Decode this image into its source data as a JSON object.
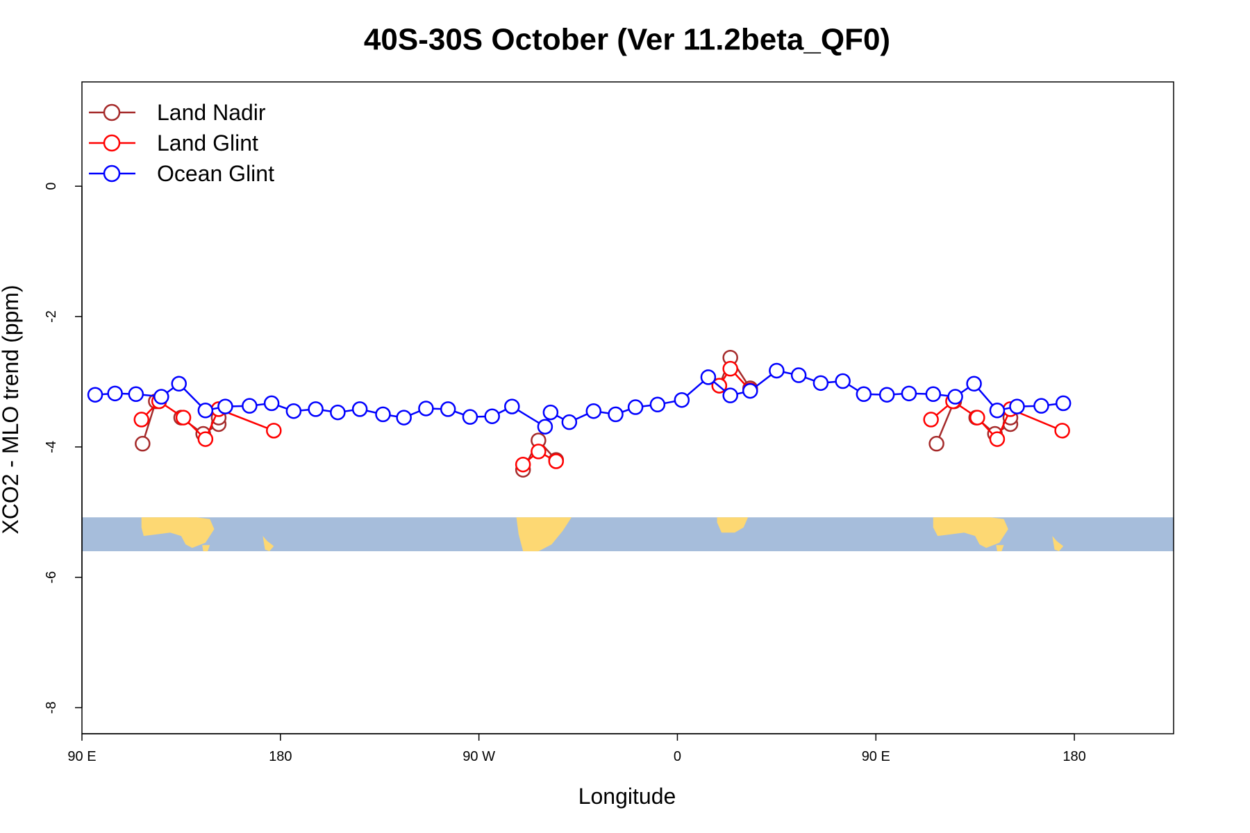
{
  "chart_data": {
    "type": "line",
    "title": "40S-30S October (Ver 11.2beta_QF0)",
    "xlabel": "Longitude",
    "ylabel": "XCO2 - MLO trend (ppm)",
    "xlim": [
      90,
      585
    ],
    "ylim": [
      -8.4,
      1.6
    ],
    "x_ticks": [
      {
        "value": 90,
        "label": "90 E"
      },
      {
        "value": 180,
        "label": "180"
      },
      {
        "value": 270,
        "label": "90 W"
      },
      {
        "value": 360,
        "label": "0"
      },
      {
        "value": 450,
        "label": "90 E"
      },
      {
        "value": 540,
        "label": "180"
      }
    ],
    "y_ticks": [
      {
        "value": 0,
        "label": "0"
      },
      {
        "value": -2,
        "label": "-2"
      },
      {
        "value": -4,
        "label": "-4"
      },
      {
        "value": -6,
        "label": "-6"
      },
      {
        "value": -8,
        "label": "-8"
      }
    ],
    "grid": false,
    "legend_position": "top-left",
    "map_strip": {
      "y_range": [
        -5.6,
        -5.08
      ],
      "ocean_color": "#a6bddb",
      "land_color": "#fdd873"
    },
    "series": [
      {
        "name": "Land Nadir",
        "color": "#a52a2a",
        "segments": [
          [
            [
              117.5,
              -3.95
            ],
            [
              123.5,
              -3.3
            ]
          ],
          [
            [
              135,
              -3.55
            ],
            [
              145,
              -3.8
            ],
            [
              152,
              -3.65
            ],
            [
              152,
              -3.55
            ]
          ],
          [
            [
              290,
              -4.35
            ],
            [
              297,
              -3.9
            ],
            [
              305,
              -4.2
            ]
          ],
          [
            [
              379,
              -3.06
            ],
            [
              384,
              -2.63
            ],
            [
              393,
              -3.1
            ]
          ],
          [
            [
              477.5,
              -3.95
            ],
            [
              485.5,
              -3.3
            ]
          ],
          [
            [
              495.5,
              -3.55
            ],
            [
              504,
              -3.8
            ],
            [
              511,
              -3.65
            ],
            [
              511,
              -3.55
            ]
          ]
        ]
      },
      {
        "name": "Land Glint",
        "color": "#ff0000",
        "segments": [
          [
            [
              117,
              -3.58
            ],
            [
              125,
              -3.3
            ],
            [
              136,
              -3.55
            ],
            [
              146,
              -3.88
            ],
            [
              152,
              -3.42
            ],
            [
              177,
              -3.75
            ]
          ],
          [
            [
              290,
              -4.27
            ],
            [
              297,
              -4.07
            ],
            [
              305,
              -4.22
            ]
          ],
          [
            [
              379,
              -3.06
            ],
            [
              384,
              -2.8
            ],
            [
              393,
              -3.13
            ]
          ],
          [
            [
              475,
              -3.58
            ],
            [
              485,
              -3.3
            ],
            [
              496,
              -3.55
            ],
            [
              505,
              -3.88
            ],
            [
              511,
              -3.42
            ],
            [
              534.5,
              -3.75
            ]
          ]
        ]
      },
      {
        "name": "Ocean Glint",
        "color": "#0000ff",
        "segments": [
          [
            [
              96,
              -3.2
            ],
            [
              105,
              -3.18
            ],
            [
              114.5,
              -3.19
            ],
            [
              126,
              -3.23
            ],
            [
              134,
              -3.03
            ],
            [
              146,
              -3.44
            ],
            [
              155,
              -3.38
            ],
            [
              166,
              -3.37
            ],
            [
              176,
              -3.33
            ],
            [
              186,
              -3.45
            ],
            [
              196,
              -3.42
            ],
            [
              206,
              -3.47
            ],
            [
              216,
              -3.42
            ],
            [
              226.5,
              -3.5
            ],
            [
              236,
              -3.55
            ],
            [
              246,
              -3.41
            ],
            [
              256,
              -3.42
            ],
            [
              266,
              -3.54
            ],
            [
              276,
              -3.53
            ],
            [
              285,
              -3.38
            ],
            [
              300,
              -3.69
            ],
            [
              302.5,
              -3.47
            ],
            [
              311,
              -3.62
            ],
            [
              322,
              -3.45
            ],
            [
              332,
              -3.5
            ],
            [
              341,
              -3.39
            ],
            [
              351,
              -3.35
            ],
            [
              362,
              -3.28
            ],
            [
              374,
              -2.93
            ],
            [
              384,
              -3.21
            ],
            [
              393,
              -3.14
            ],
            [
              405,
              -2.83
            ],
            [
              415,
              -2.9
            ],
            [
              425,
              -3.02
            ],
            [
              435,
              -2.99
            ],
            [
              444.5,
              -3.19
            ],
            [
              455,
              -3.2
            ],
            [
              465,
              -3.18
            ],
            [
              476,
              -3.19
            ],
            [
              486,
              -3.23
            ],
            [
              494.5,
              -3.03
            ],
            [
              505,
              -3.44
            ],
            [
              514,
              -3.38
            ],
            [
              525,
              -3.37
            ],
            [
              535,
              -3.33
            ]
          ]
        ]
      }
    ]
  }
}
